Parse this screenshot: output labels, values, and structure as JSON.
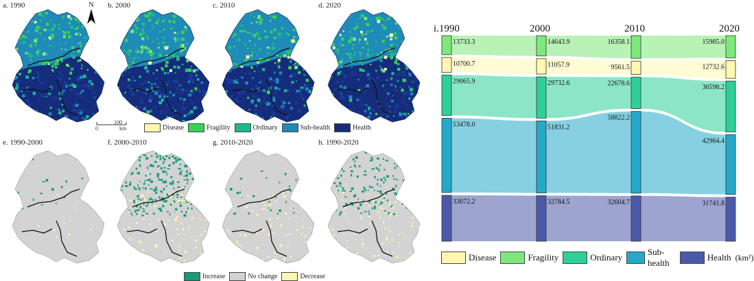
{
  "maps": {
    "top": [
      {
        "id": "a",
        "title": "a. 1990"
      },
      {
        "id": "b",
        "title": "b. 2000"
      },
      {
        "id": "c",
        "title": "c. 2010"
      },
      {
        "id": "d",
        "title": "d. 2020"
      }
    ],
    "bottom": [
      {
        "id": "e",
        "title": "e. 1990-2000",
        "increase_density": 0.02
      },
      {
        "id": "f",
        "title": "f. 2000-2010",
        "increase_density": 0.35
      },
      {
        "id": "g",
        "title": "g. 2010-2020",
        "increase_density": 0.05
      },
      {
        "id": "h",
        "title": "h. 1990-2020",
        "increase_density": 0.18
      }
    ],
    "north_label": "N",
    "scale": {
      "zero": "0",
      "hundred": "100",
      "unit": "km"
    },
    "class_legend": [
      {
        "label": "Disease",
        "color": "#fff7b0"
      },
      {
        "label": "Fragility",
        "color": "#39d353"
      },
      {
        "label": "Ordinary",
        "color": "#1fb98c"
      },
      {
        "label": "Sub-health",
        "color": "#1f8bb8"
      },
      {
        "label": "Health",
        "color": "#152c7c"
      }
    ],
    "change_legend": [
      {
        "label": "Increase",
        "color": "#1a9a7a"
      },
      {
        "label": "No change",
        "color": "#d3d3d3"
      },
      {
        "label": "Decrease",
        "color": "#fff7b0"
      }
    ]
  },
  "chart_data": {
    "type": "sankey",
    "title": "i.1990",
    "years": [
      "1990",
      "2000",
      "2010",
      "2020"
    ],
    "unit": "(km²)",
    "categories": [
      {
        "name": "Fragility",
        "color": "#7ee87a",
        "values": [
          13733.3,
          14643.9,
          16358.1,
          15985.0
        ]
      },
      {
        "name": "Disease",
        "color": "#fff7b0",
        "values": [
          10700.7,
          11057.9,
          9561.5,
          12732.6
        ]
      },
      {
        "name": "Ordinary",
        "color": "#2fcf9a",
        "values": [
          29065.9,
          29732.6,
          22678.6,
          36598.2
        ]
      },
      {
        "name": "Sub-health",
        "color": "#25a9c9",
        "values": [
          53478.0,
          51831.2,
          58822.2,
          42964.4
        ]
      },
      {
        "name": "Health",
        "color": "#4b5aa8",
        "values": [
          33072.2,
          32784.5,
          32604.7,
          31741.8
        ]
      }
    ],
    "legend": [
      "Disease",
      "Fragility",
      "Ordinary",
      "Sub-health",
      "Health"
    ]
  },
  "sankey_legend": [
    {
      "label": "Disease",
      "color": "#fff7b0"
    },
    {
      "label": "Fragility",
      "color": "#7ee87a"
    },
    {
      "label": "Ordinary",
      "color": "#2fcf9a"
    },
    {
      "label": "Sub-health",
      "color": "#25a9c9"
    },
    {
      "label": "Health",
      "color": "#4b5aa8"
    }
  ]
}
